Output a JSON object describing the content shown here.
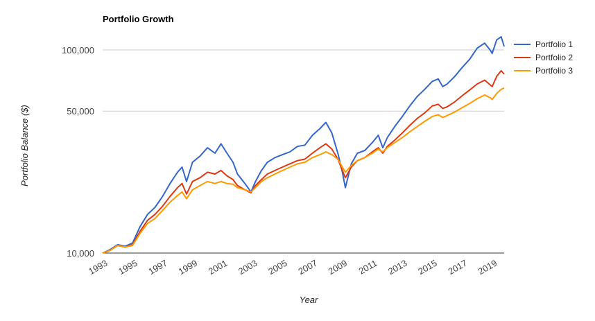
{
  "chart_data": {
    "type": "line",
    "title": "Portfolio Growth",
    "xlabel": "Year",
    "ylabel": "Portfolio Balance ($)",
    "y_scale": "log",
    "ylim": [
      10000,
      120000
    ],
    "xlim": [
      1993.0,
      2019.8
    ],
    "y_ticks": [
      10000,
      50000,
      100000
    ],
    "y_tick_labels": [
      "10,000",
      "50,000",
      "100,000"
    ],
    "x_ticks": [
      1993,
      1995,
      1997,
      1999,
      2001,
      2003,
      2005,
      2007,
      2009,
      2011,
      2013,
      2015,
      2017,
      2019
    ],
    "x_tick_labels": [
      "1993",
      "1995",
      "1997",
      "1999",
      "2001",
      "2003",
      "2005",
      "2007",
      "2009",
      "2011",
      "2013",
      "2015",
      "2017",
      "2019"
    ],
    "legend_position": "right",
    "grid": true,
    "series": [
      {
        "name": "Portfolio 1",
        "color": "#3366cc",
        "x": [
          1993.0,
          1993.5,
          1994.0,
          1994.5,
          1995.0,
          1995.5,
          1996.0,
          1996.5,
          1997.0,
          1997.5,
          1998.0,
          1998.3,
          1998.6,
          1999.0,
          1999.5,
          2000.0,
          2000.5,
          2000.9,
          2001.3,
          2001.7,
          2002.0,
          2002.5,
          2002.9,
          2003.2,
          2003.6,
          2004.0,
          2004.5,
          2005.0,
          2005.5,
          2006.0,
          2006.5,
          2007.0,
          2007.5,
          2007.9,
          2008.3,
          2008.7,
          2009.0,
          2009.2,
          2009.6,
          2010.0,
          2010.5,
          2011.0,
          2011.4,
          2011.7,
          2012.0,
          2012.5,
          2013.0,
          2013.5,
          2014.0,
          2014.5,
          2015.0,
          2015.4,
          2015.7,
          2016.0,
          2016.5,
          2017.0,
          2017.5,
          2018.0,
          2018.5,
          2018.9,
          2019.0,
          2019.3,
          2019.6,
          2019.8
        ],
        "values": [
          10000,
          10400,
          11000,
          10800,
          11200,
          13500,
          15500,
          16800,
          19000,
          22000,
          25000,
          26500,
          22500,
          28000,
          30000,
          33000,
          31000,
          34500,
          31000,
          28000,
          24500,
          22000,
          20000,
          22500,
          25500,
          28000,
          29500,
          30500,
          31500,
          33500,
          34000,
          38000,
          41000,
          44000,
          39000,
          31000,
          25000,
          21000,
          27500,
          31000,
          32000,
          35000,
          38000,
          33000,
          37000,
          42000,
          47000,
          53000,
          59000,
          64000,
          70000,
          72000,
          66000,
          68000,
          74000,
          82000,
          90000,
          102000,
          108000,
          99000,
          96000,
          112000,
          116000,
          104000
        ]
      },
      {
        "name": "Portfolio 2",
        "color": "#dc3912",
        "x": [
          1993.0,
          1993.5,
          1994.0,
          1994.5,
          1995.0,
          1995.5,
          1996.0,
          1996.5,
          1997.0,
          1997.5,
          1998.0,
          1998.3,
          1998.6,
          1999.0,
          1999.5,
          2000.0,
          2000.5,
          2000.9,
          2001.3,
          2001.7,
          2002.0,
          2002.5,
          2002.9,
          2003.2,
          2003.6,
          2004.0,
          2004.5,
          2005.0,
          2005.5,
          2006.0,
          2006.5,
          2007.0,
          2007.5,
          2007.9,
          2008.3,
          2008.7,
          2009.0,
          2009.2,
          2009.6,
          2010.0,
          2010.5,
          2011.0,
          2011.4,
          2011.7,
          2012.0,
          2012.5,
          2013.0,
          2013.5,
          2014.0,
          2014.5,
          2015.0,
          2015.4,
          2015.7,
          2016.0,
          2016.5,
          2017.0,
          2017.5,
          2018.0,
          2018.5,
          2018.9,
          2019.0,
          2019.3,
          2019.6,
          2019.8
        ],
        "values": [
          10000,
          10300,
          10900,
          10700,
          11000,
          12800,
          14500,
          15500,
          17000,
          19000,
          21000,
          22000,
          19500,
          22500,
          23500,
          25000,
          24500,
          25500,
          24000,
          23000,
          21500,
          20500,
          19800,
          21500,
          23000,
          24500,
          25500,
          26500,
          27500,
          28500,
          29000,
          31000,
          33000,
          34500,
          32500,
          29000,
          25500,
          23500,
          26500,
          28500,
          29500,
          31500,
          33000,
          31000,
          33500,
          36000,
          39000,
          42500,
          46000,
          49000,
          53000,
          54000,
          51500,
          52500,
          55500,
          59500,
          63500,
          68000,
          71000,
          67000,
          66000,
          74000,
          79000,
          76000
        ]
      },
      {
        "name": "Portfolio 3",
        "color": "#ff9900",
        "x": [
          1993.0,
          1993.5,
          1994.0,
          1994.5,
          1995.0,
          1995.5,
          1996.0,
          1996.5,
          1997.0,
          1997.5,
          1998.0,
          1998.3,
          1998.6,
          1999.0,
          1999.5,
          2000.0,
          2000.5,
          2000.9,
          2001.3,
          2001.7,
          2002.0,
          2002.5,
          2002.9,
          2003.2,
          2003.6,
          2004.0,
          2004.5,
          2005.0,
          2005.5,
          2006.0,
          2006.5,
          2007.0,
          2007.5,
          2007.9,
          2008.3,
          2008.7,
          2009.0,
          2009.2,
          2009.6,
          2010.0,
          2010.5,
          2011.0,
          2011.4,
          2011.7,
          2012.0,
          2012.5,
          2013.0,
          2013.5,
          2014.0,
          2014.5,
          2015.0,
          2015.4,
          2015.7,
          2016.0,
          2016.5,
          2017.0,
          2017.5,
          2018.0,
          2018.5,
          2018.9,
          2019.0,
          2019.3,
          2019.6,
          2019.8
        ],
        "values": [
          10000,
          10300,
          10900,
          10700,
          10900,
          12500,
          14000,
          14800,
          16200,
          17800,
          19200,
          20000,
          18500,
          20500,
          21500,
          22500,
          22000,
          22500,
          22000,
          21800,
          21000,
          20500,
          20000,
          21000,
          22500,
          23500,
          24500,
          25500,
          26500,
          27500,
          28000,
          29500,
          30500,
          31500,
          30500,
          29000,
          26500,
          25000,
          27000,
          28500,
          29500,
          31000,
          32500,
          31500,
          33000,
          35000,
          37000,
          39500,
          42000,
          44500,
          47000,
          48000,
          46500,
          47500,
          49500,
          52000,
          54500,
          57500,
          60000,
          58000,
          57000,
          61000,
          64000,
          65000
        ]
      }
    ]
  }
}
